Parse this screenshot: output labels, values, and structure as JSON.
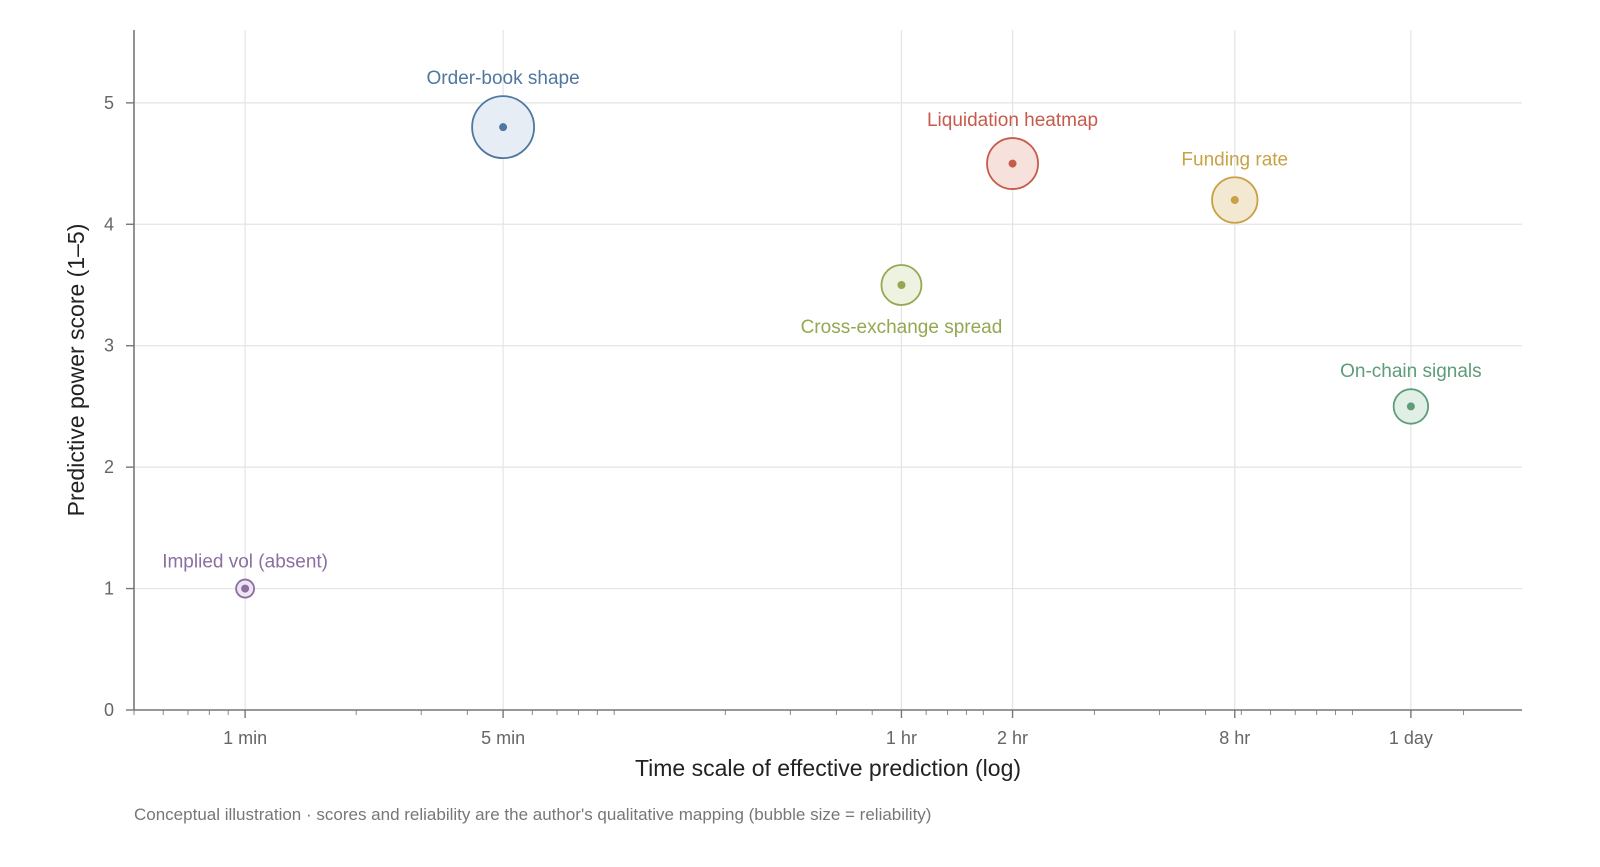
{
  "chart_data": {
    "type": "scatter",
    "variant": "bubble",
    "title": "",
    "xlabel": "Time scale of effective prediction (log)",
    "ylabel": "Predictive power score (1–5)",
    "note": "Conceptual illustration · scores and reliability are the author's qualitative mapping (bubble size = reliability)",
    "x_unit": "minutes",
    "x_scale": "log",
    "xlim": [
      0.5,
      2880
    ],
    "ylim": [
      0,
      5.6
    ],
    "y_ticks": [
      0,
      1,
      2,
      3,
      4,
      5
    ],
    "x_ticks": [
      {
        "value": 1,
        "label": "1 min"
      },
      {
        "value": 5,
        "label": "5 min"
      },
      {
        "value": 60,
        "label": "1 hr"
      },
      {
        "value": 120,
        "label": "2 hr"
      },
      {
        "value": 480,
        "label": "8 hr"
      },
      {
        "value": 1440,
        "label": "1 day"
      }
    ],
    "grid": true,
    "points": [
      {
        "name": "Implied vol (absent)",
        "x": 1,
        "y": 1.0,
        "reliability": 1,
        "color": "#8b6fa0",
        "fill": "#ede5f1",
        "label_pos": "above"
      },
      {
        "name": "Order-book shape",
        "x": 5,
        "y": 4.8,
        "reliability": 5,
        "color": "#4f77a0",
        "fill": "#e6edf5",
        "label_pos": "above"
      },
      {
        "name": "Cross-exchange spread",
        "x": 60,
        "y": 3.5,
        "reliability": 3,
        "color": "#93a851",
        "fill": "#eef2e0",
        "label_pos": "below"
      },
      {
        "name": "Liquidation heatmap",
        "x": 120,
        "y": 4.5,
        "reliability": 4,
        "color": "#c65b4b",
        "fill": "#f6e1dc",
        "label_pos": "above"
      },
      {
        "name": "Funding rate",
        "x": 480,
        "y": 4.2,
        "reliability": 3.5,
        "color": "#c9a247",
        "fill": "#f3e9d2",
        "label_pos": "above"
      },
      {
        "name": "On-chain signals",
        "x": 1440,
        "y": 2.5,
        "reliability": 2.5,
        "color": "#5d9d78",
        "fill": "#e2efe7",
        "label_pos": "above"
      }
    ]
  }
}
